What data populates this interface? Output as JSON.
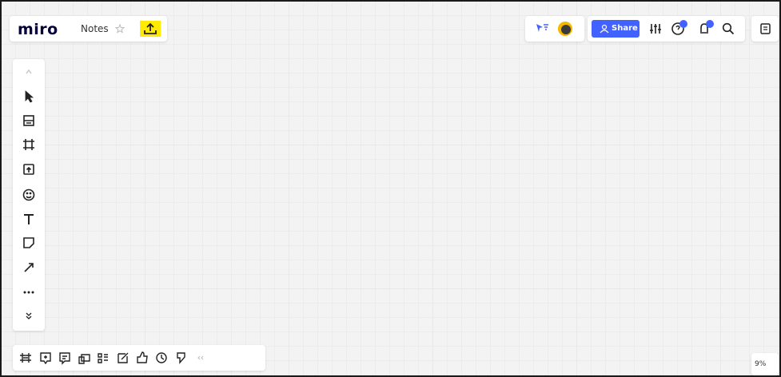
{
  "header": {
    "logo": "miro",
    "board_name": "Notes",
    "share_button": "Share"
  },
  "zoom": {
    "level": "9%"
  }
}
